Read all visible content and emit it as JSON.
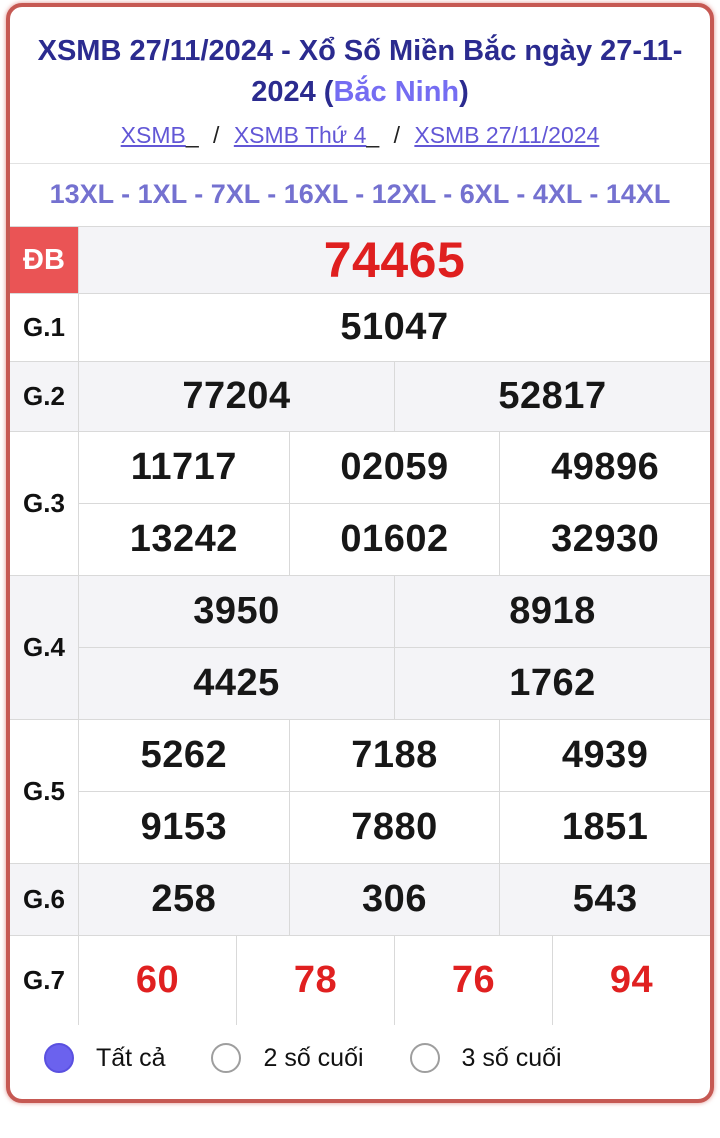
{
  "header": {
    "title_prefix": "XSMB 27/11/2024 - Xổ Số Miền Bắc ngày 27-11-2024 (",
    "title_highlight": "Bắc Ninh",
    "title_suffix": ")",
    "breadcrumb": {
      "separator": "/",
      "items": [
        {
          "label": "XSMB",
          "trail": "_"
        },
        {
          "label": "XSMB Thứ 4",
          "trail": "_"
        },
        {
          "label": "XSMB 27/11/2024",
          "trail": ""
        }
      ]
    }
  },
  "xl_line": "13XL - 1XL - 7XL - 16XL - 12XL - 6XL - 4XL - 14XL",
  "results": {
    "rows": [
      {
        "label": "ĐB",
        "style": "special",
        "values": [
          [
            "74465"
          ]
        ]
      },
      {
        "label": "G.1",
        "style": "normal",
        "values": [
          [
            "51047"
          ]
        ]
      },
      {
        "label": "G.2",
        "style": "normal",
        "values": [
          [
            "77204",
            "52817"
          ]
        ]
      },
      {
        "label": "G.3",
        "style": "normal",
        "values": [
          [
            "11717",
            "02059",
            "49896"
          ],
          [
            "13242",
            "01602",
            "32930"
          ]
        ]
      },
      {
        "label": "G.4",
        "style": "normal",
        "values": [
          [
            "3950",
            "8918"
          ],
          [
            "4425",
            "1762"
          ]
        ]
      },
      {
        "label": "G.5",
        "style": "normal",
        "values": [
          [
            "5262",
            "7188",
            "4939"
          ],
          [
            "9153",
            "7880",
            "1851"
          ]
        ]
      },
      {
        "label": "G.6",
        "style": "normal",
        "values": [
          [
            "258",
            "306",
            "543"
          ]
        ]
      },
      {
        "label": "G.7",
        "style": "red",
        "values": [
          [
            "60",
            "78",
            "76",
            "94"
          ]
        ]
      }
    ]
  },
  "filters": [
    {
      "label": "Tất cả",
      "selected": true
    },
    {
      "label": "2 số cuối",
      "selected": false
    },
    {
      "label": "3 số cuối",
      "selected": false
    }
  ],
  "colors": {
    "title_navy": "#2b2b8f",
    "province_purple": "#756df2",
    "link_purple": "#6257d6",
    "xl_purple": "#7471d0",
    "special_bg_red": "#ea5455",
    "number_red": "#df1f1f",
    "card_border_red": "#c65953",
    "row_alt_gray": "#f4f4f7",
    "radio_selected_purple": "#6b62ee"
  }
}
